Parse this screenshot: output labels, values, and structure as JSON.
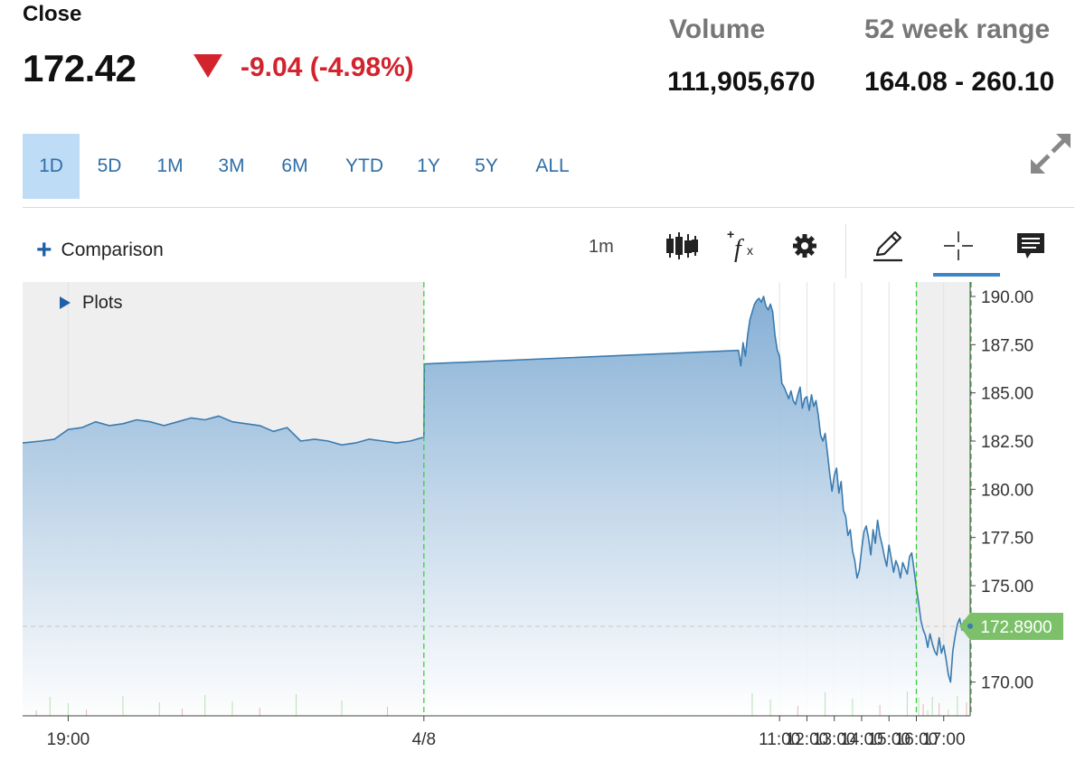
{
  "quote": {
    "label": "Close",
    "price": "172.42",
    "change": "-9.04 (-4.98%)",
    "direction": "down",
    "change_color": "#d3232d"
  },
  "stats": {
    "volume_label": "Volume",
    "volume_value": "111,905,670",
    "range_label": "52 week range",
    "range_value": "164.08 - 260.10"
  },
  "range_tabs": [
    {
      "label": "1D",
      "active": true
    },
    {
      "label": "5D",
      "active": false
    },
    {
      "label": "1M",
      "active": false
    },
    {
      "label": "3M",
      "active": false
    },
    {
      "label": "6M",
      "active": false
    },
    {
      "label": "YTD",
      "active": false
    },
    {
      "label": "1Y",
      "active": false
    },
    {
      "label": "5Y",
      "active": false
    },
    {
      "label": "ALL",
      "active": false
    }
  ],
  "toolbar": {
    "comparison_label": "Comparison",
    "interval_label": "1m",
    "icons": [
      "candlestick-icon",
      "function-icon",
      "gear-icon",
      "pencil-icon",
      "crosshair-icon",
      "comment-icon"
    ],
    "active_tool": "crosshair-icon"
  },
  "colors": {
    "line": "#3a7bb0",
    "fill_top": "#7fabd3",
    "accent": "#1f5fa8",
    "session_divider": "#3ecf3e",
    "last_price_label": "#7cc16a",
    "extended_hours_bg": "#efefef"
  },
  "chart_data": {
    "type": "area",
    "plots_label": "Plots",
    "ylim": [
      168.25,
      190.75
    ],
    "y_ticks": [
      "190.00",
      "187.50",
      "185.00",
      "182.50",
      "180.00",
      "177.50",
      "175.00",
      "170.00"
    ],
    "y_tick_values": [
      190,
      187.5,
      185,
      182.5,
      180,
      177.5,
      175,
      170
    ],
    "x_ticks": [
      "19:00",
      "4/8",
      "11:00",
      "12:00",
      "13:00",
      "14:00",
      "15:00",
      "16:00",
      "17:00"
    ],
    "x_tick_minutes": [
      -900,
      -120,
      660,
      720,
      780,
      840,
      900,
      960,
      1020
    ],
    "session_breaks_minutes": [
      -120,
      960,
      1080
    ],
    "extended_hours_minutes": [
      [
        -1000,
        -120
      ],
      [
        960,
        1080
      ]
    ],
    "last_price": "172.8900",
    "last_price_value": 172.89,
    "series": [
      {
        "x_minutes": [
          -1000,
          -960,
          -930,
          -900,
          -870,
          -840,
          -810,
          -780,
          -750,
          -720,
          -690,
          -660,
          -630,
          -600,
          -570,
          -540,
          -510,
          -480,
          -450,
          -420,
          -390,
          -360,
          -330,
          -300,
          -270,
          -240,
          -210,
          -180,
          -150,
          -120,
          -119,
          570,
          575,
          580,
          585,
          590,
          595,
          600,
          605,
          610,
          615,
          620,
          625,
          630,
          635,
          640,
          645,
          650,
          655,
          660,
          665,
          670,
          675,
          680,
          685,
          690,
          695,
          700,
          705,
          710,
          715,
          720,
          725,
          730,
          735,
          740,
          745,
          750,
          755,
          760,
          765,
          770,
          775,
          780,
          785,
          790,
          795,
          800,
          805,
          810,
          815,
          820,
          825,
          830,
          835,
          840,
          845,
          850,
          855,
          860,
          865,
          870,
          875,
          880,
          885,
          890,
          895,
          900,
          905,
          910,
          915,
          920,
          925,
          930,
          935,
          940,
          945,
          950,
          955,
          960,
          965,
          970,
          975,
          980,
          985,
          990,
          995,
          1000,
          1005,
          1010,
          1015,
          1020,
          1025,
          1030,
          1035,
          1040,
          1045,
          1050,
          1055,
          1060,
          1065,
          1070,
          1075,
          1078
        ],
        "values": [
          182.4,
          182.5,
          182.6,
          183.1,
          183.2,
          183.5,
          183.3,
          183.4,
          183.6,
          183.5,
          183.3,
          183.5,
          183.7,
          183.6,
          183.8,
          183.5,
          183.4,
          183.3,
          183.0,
          183.2,
          182.5,
          182.6,
          182.5,
          182.3,
          182.4,
          182.6,
          182.5,
          182.4,
          182.5,
          182.7,
          186.5,
          187.2,
          186.4,
          187.6,
          186.9,
          188.0,
          188.8,
          189.2,
          189.6,
          189.8,
          189.9,
          189.7,
          190.0,
          189.5,
          189.3,
          189.6,
          189.2,
          188.0,
          187.2,
          186.9,
          185.5,
          185.3,
          185.0,
          184.7,
          185.1,
          184.6,
          184.4,
          184.9,
          185.3,
          184.2,
          184.7,
          184.8,
          184.1,
          184.9,
          184.3,
          184.6,
          183.8,
          182.8,
          182.5,
          182.9,
          181.9,
          180.8,
          179.9,
          180.7,
          181.1,
          179.8,
          180.4,
          178.9,
          178.6,
          177.6,
          177.9,
          176.8,
          176.3,
          175.4,
          175.8,
          176.9,
          177.8,
          178.1,
          177.5,
          176.6,
          177.9,
          177.2,
          178.4,
          177.6,
          177.1,
          176.5,
          176.0,
          177.1,
          176.4,
          175.7,
          176.3,
          176.0,
          175.4,
          176.2,
          175.9,
          175.6,
          176.5,
          176.7,
          175.8,
          174.9,
          174.1,
          173.2,
          172.7,
          172.4,
          171.8,
          172.5,
          172.0,
          171.6,
          171.4,
          172.3,
          171.5,
          171.9,
          171.2,
          170.4,
          170.0,
          171.6,
          172.4,
          173.0,
          173.3,
          172.7,
          173.2,
          173.0,
          172.6,
          172.9
        ]
      }
    ]
  }
}
